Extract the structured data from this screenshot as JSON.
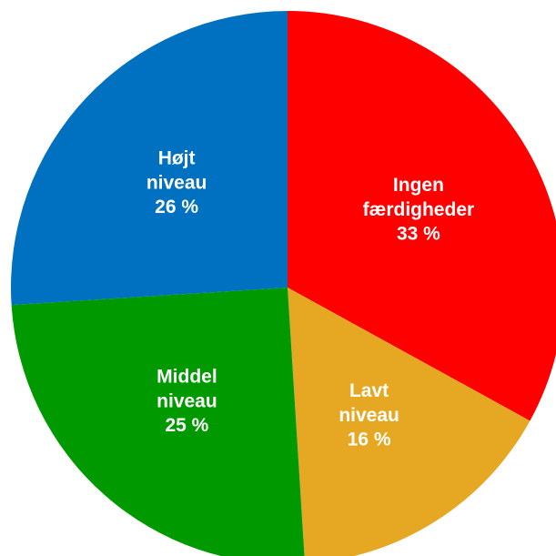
{
  "chart_data": {
    "type": "pie",
    "categories": [
      "Ingen færdigheder",
      "Lavt niveau",
      "Middel niveau",
      "Højt niveau"
    ],
    "values": [
      33,
      16,
      25,
      26
    ],
    "value_labels": [
      "33 %",
      "16 %",
      "25 %",
      "26 %"
    ],
    "colors": [
      "#ff0000",
      "#e6a823",
      "#009900",
      "#0070c0"
    ]
  }
}
